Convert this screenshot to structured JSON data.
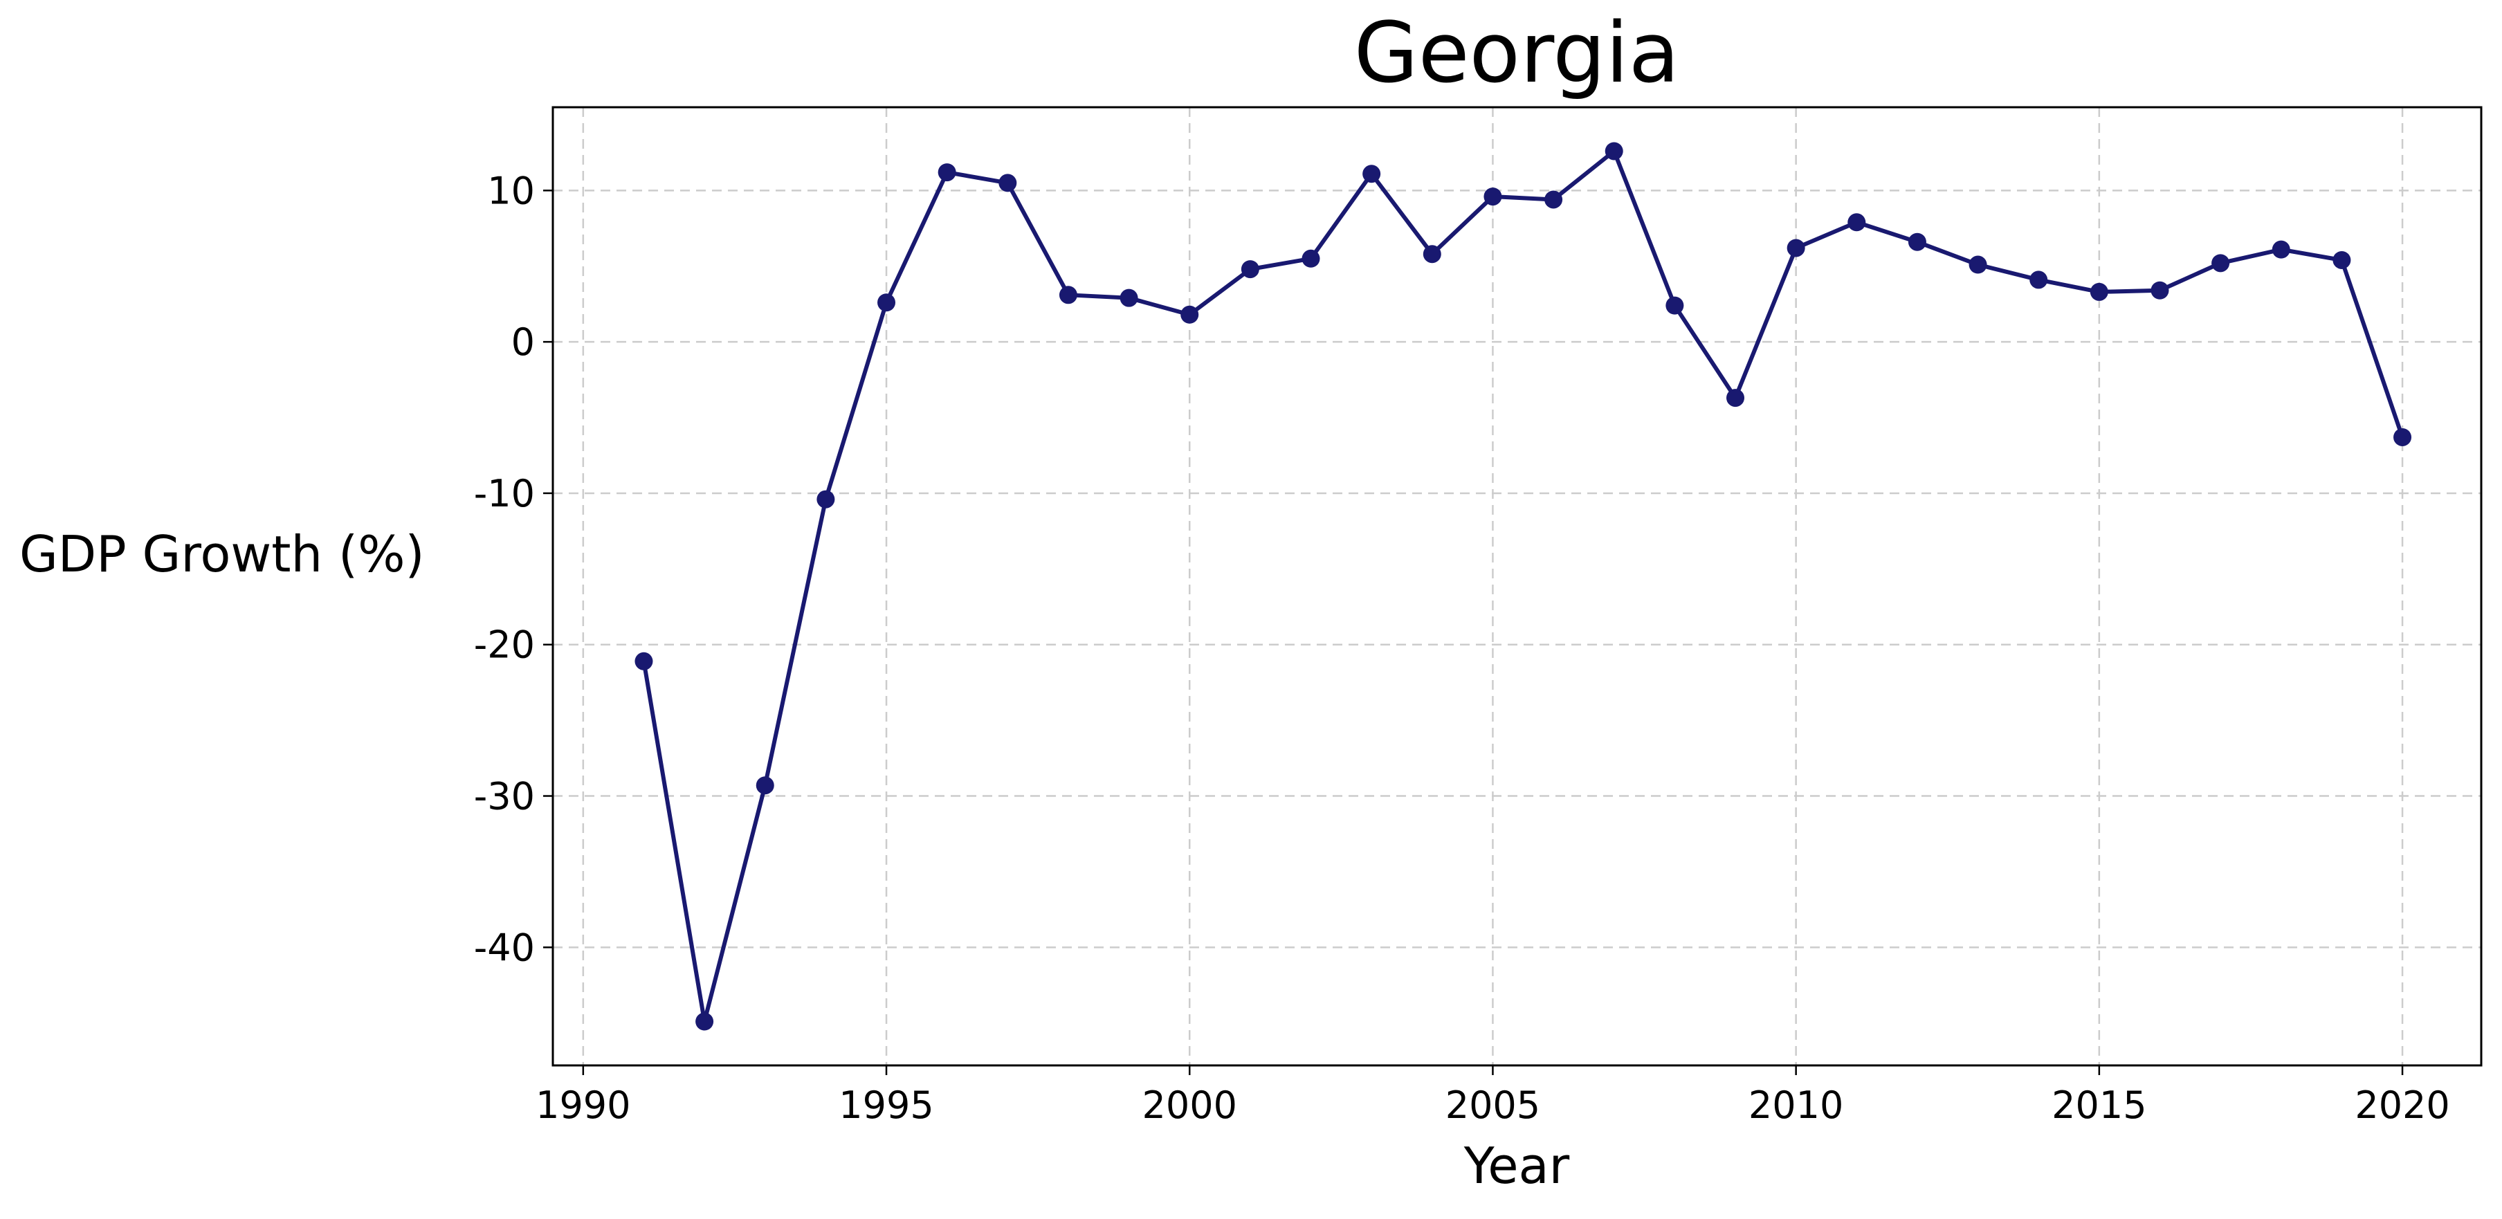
{
  "chart_data": {
    "type": "line",
    "title": "Georgia",
    "xlabel": "Year",
    "ylabel": "GDP Growth (%)",
    "xlim": [
      1989.5,
      2021.3
    ],
    "ylim": [
      -47.8,
      15.5
    ],
    "xticks": [
      1990,
      1995,
      2000,
      2005,
      2010,
      2015,
      2020
    ],
    "yticks": [
      -40,
      -30,
      -20,
      -10,
      0,
      10
    ],
    "grid": true,
    "legend": "none",
    "colors": {
      "series": "#191970"
    },
    "series": [
      {
        "x": [
          1991,
          1992,
          1993,
          1994,
          1995,
          1996,
          1997,
          1998,
          1999,
          2000,
          2001,
          2002,
          2003,
          2004,
          2005,
          2006,
          2007,
          2008,
          2009,
          2010,
          2011,
          2012,
          2013,
          2014,
          2015,
          2016,
          2017,
          2018,
          2019,
          2020
        ],
        "y": [
          -21.1,
          -44.9,
          -29.3,
          -10.4,
          2.6,
          11.2,
          10.5,
          3.1,
          2.9,
          1.8,
          4.8,
          5.5,
          11.1,
          5.8,
          9.6,
          9.4,
          12.6,
          2.4,
          -3.7,
          6.2,
          7.9,
          6.6,
          5.1,
          4.1,
          3.3,
          3.4,
          5.2,
          6.1,
          5.4,
          -6.3
        ]
      }
    ]
  }
}
